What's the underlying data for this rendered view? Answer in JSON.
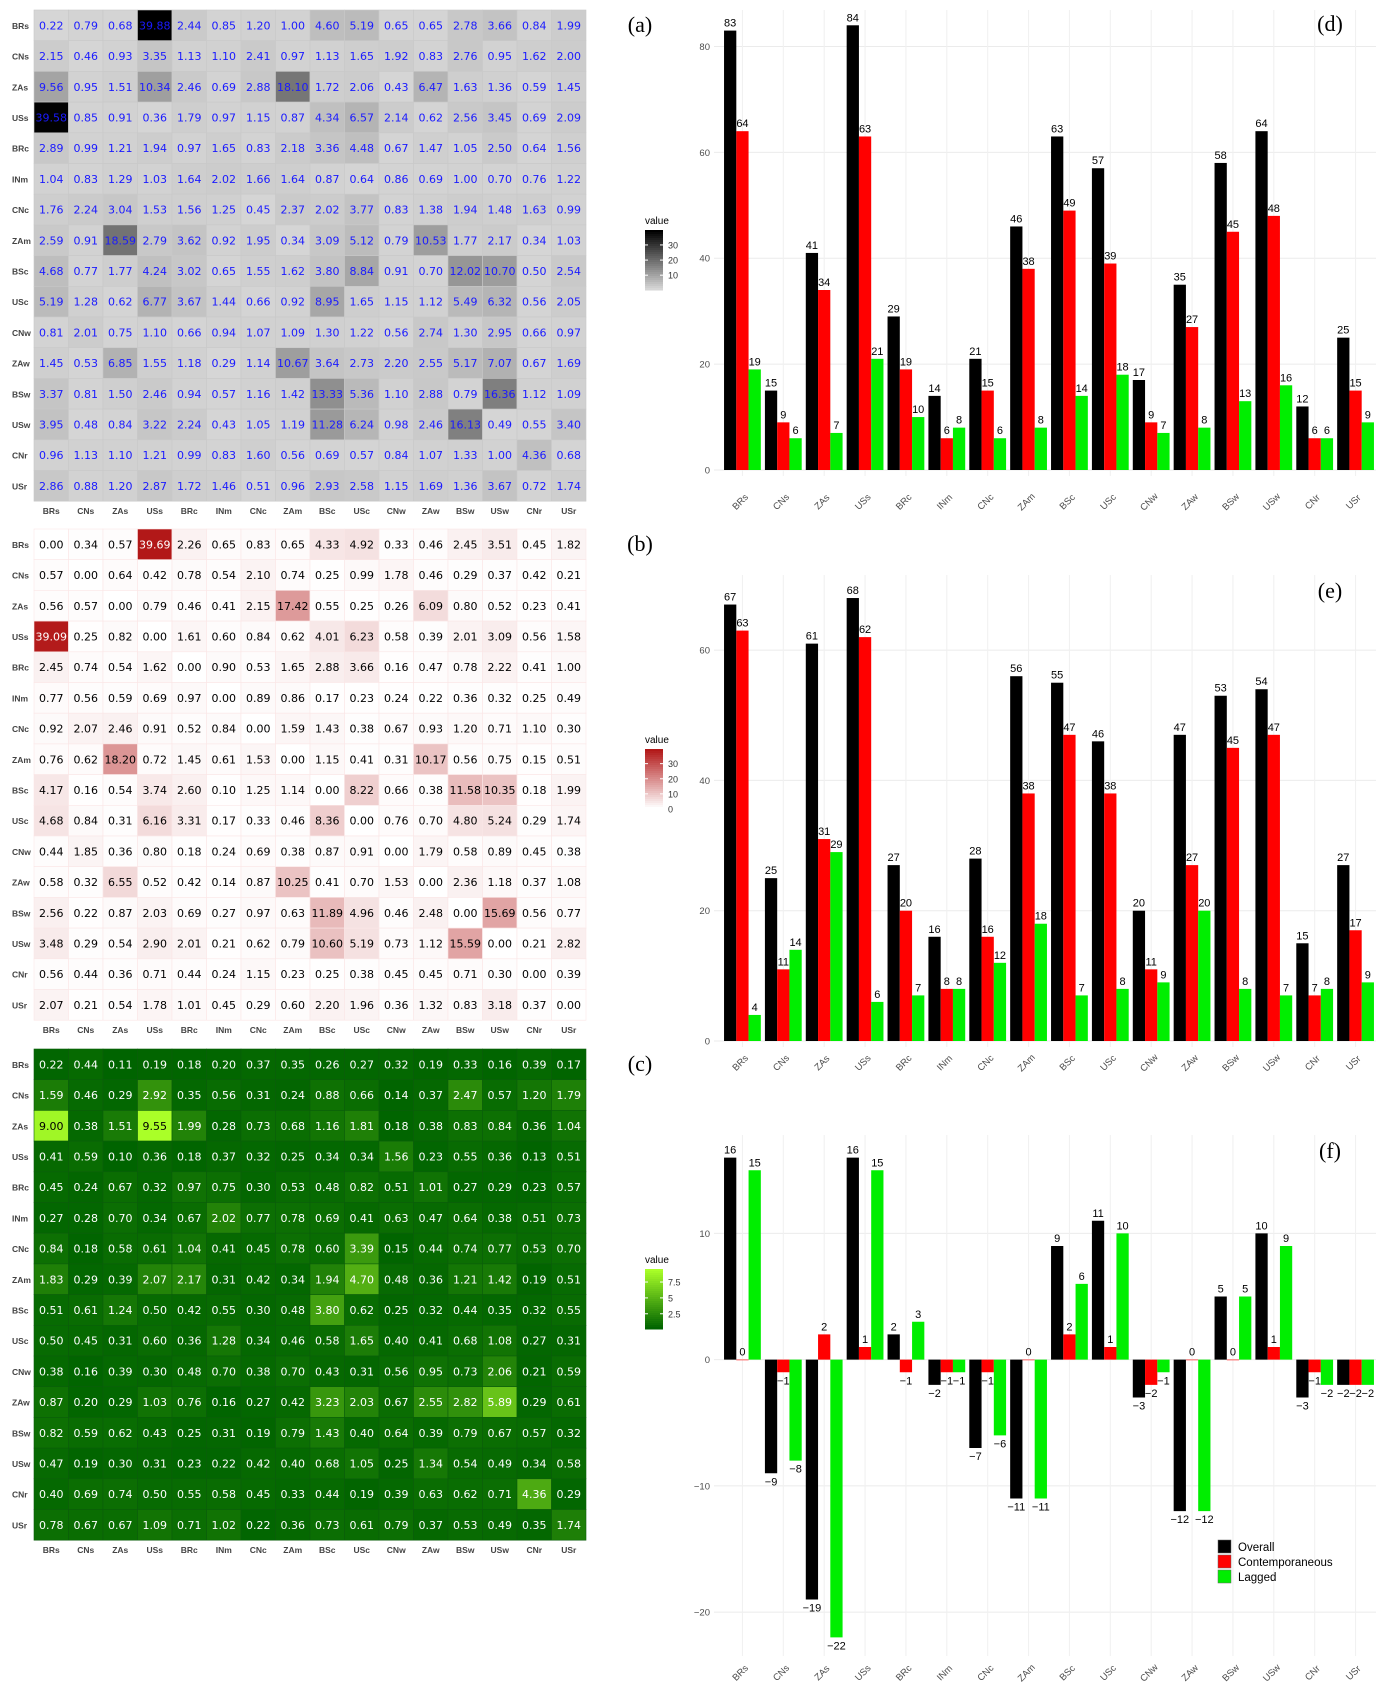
{
  "labels": [
    "BRs",
    "CNs",
    "ZAs",
    "USs",
    "BRc",
    "INm",
    "CNc",
    "ZAm",
    "BSc",
    "USc",
    "CNw",
    "ZAw",
    "BSw",
    "USw",
    "CNr",
    "USr"
  ],
  "panel_letters": [
    "(a)",
    "(b)",
    "(c)",
    "(d)",
    "(e)",
    "(f)"
  ],
  "legend_title": "value",
  "bar_legend": [
    "Overall",
    "Contemporaneous",
    "Lagged"
  ],
  "colors": {
    "overall": "#000000",
    "contemporaneous": "#ff0000",
    "lagged": "#00ee00",
    "heat_a_text": "#1a1aff"
  },
  "chart_data": [
    {
      "type": "heatmap",
      "panel": "(a)",
      "colorscale": "grey",
      "legend_ticks": [
        10,
        20,
        30
      ],
      "range": [
        0.22,
        39.88
      ],
      "values": [
        [
          0.22,
          0.79,
          0.68,
          39.88,
          2.44,
          0.85,
          1.2,
          1.0,
          4.6,
          5.19,
          0.65,
          0.65,
          2.78,
          3.66,
          0.84,
          1.99
        ],
        [
          2.15,
          0.46,
          0.93,
          3.35,
          1.13,
          1.1,
          2.41,
          0.97,
          1.13,
          1.65,
          1.92,
          0.83,
          2.76,
          0.95,
          1.62,
          2.0
        ],
        [
          9.56,
          0.95,
          1.51,
          10.34,
          2.46,
          0.69,
          2.88,
          18.1,
          1.72,
          2.06,
          0.43,
          6.47,
          1.63,
          1.36,
          0.59,
          1.45
        ],
        [
          39.58,
          0.85,
          0.91,
          0.36,
          1.79,
          0.97,
          1.15,
          0.87,
          4.34,
          6.57,
          2.14,
          0.62,
          2.56,
          3.45,
          0.69,
          2.09
        ],
        [
          2.89,
          0.99,
          1.21,
          1.94,
          0.97,
          1.65,
          0.83,
          2.18,
          3.36,
          4.48,
          0.67,
          1.47,
          1.05,
          2.5,
          0.64,
          1.56
        ],
        [
          1.04,
          0.83,
          1.29,
          1.03,
          1.64,
          2.02,
          1.66,
          1.64,
          0.87,
          0.64,
          0.86,
          0.69,
          1.0,
          0.7,
          0.76,
          1.22
        ],
        [
          1.76,
          2.24,
          3.04,
          1.53,
          1.56,
          1.25,
          0.45,
          2.37,
          2.02,
          3.77,
          0.83,
          1.38,
          1.94,
          1.48,
          1.63,
          0.99
        ],
        [
          2.59,
          0.91,
          18.59,
          2.79,
          3.62,
          0.92,
          1.95,
          0.34,
          3.09,
          5.12,
          0.79,
          10.53,
          1.77,
          2.17,
          0.34,
          1.03
        ],
        [
          4.68,
          0.77,
          1.77,
          4.24,
          3.02,
          0.65,
          1.55,
          1.62,
          3.8,
          8.84,
          0.91,
          0.7,
          12.02,
          10.7,
          0.5,
          2.54
        ],
        [
          5.19,
          1.28,
          0.62,
          6.77,
          3.67,
          1.44,
          0.66,
          0.92,
          8.95,
          1.65,
          1.15,
          1.12,
          5.49,
          6.32,
          0.56,
          2.05
        ],
        [
          0.81,
          2.01,
          0.75,
          1.1,
          0.66,
          0.94,
          1.07,
          1.09,
          1.3,
          1.22,
          0.56,
          2.74,
          1.3,
          2.95,
          0.66,
          0.97
        ],
        [
          1.45,
          0.53,
          6.85,
          1.55,
          1.18,
          0.29,
          1.14,
          10.67,
          3.64,
          2.73,
          2.2,
          2.55,
          5.17,
          7.07,
          0.67,
          1.69
        ],
        [
          3.37,
          0.81,
          1.5,
          2.46,
          0.94,
          0.57,
          1.16,
          1.42,
          13.33,
          5.36,
          1.1,
          2.88,
          0.79,
          16.36,
          1.12,
          1.09
        ],
        [
          3.95,
          0.48,
          0.84,
          3.22,
          2.24,
          0.43,
          1.05,
          1.19,
          11.28,
          6.24,
          0.98,
          2.46,
          16.13,
          0.49,
          0.55,
          3.4
        ],
        [
          0.96,
          1.13,
          1.1,
          1.21,
          0.99,
          0.83,
          1.6,
          0.56,
          0.69,
          0.57,
          0.84,
          1.07,
          1.33,
          1.0,
          4.36,
          0.68
        ],
        [
          2.86,
          0.88,
          1.2,
          2.87,
          1.72,
          1.46,
          0.51,
          0.96,
          2.93,
          2.58,
          1.15,
          1.69,
          1.36,
          3.67,
          0.72,
          1.74
        ]
      ]
    },
    {
      "type": "heatmap",
      "panel": "(b)",
      "colorscale": "red",
      "legend_ticks": [
        0,
        10,
        20,
        30
      ],
      "range": [
        0,
        39.69
      ],
      "values": [
        [
          0.0,
          0.34,
          0.57,
          39.69,
          2.26,
          0.65,
          0.83,
          0.65,
          4.33,
          4.92,
          0.33,
          0.46,
          2.45,
          3.51,
          0.45,
          1.82
        ],
        [
          0.57,
          0.0,
          0.64,
          0.42,
          0.78,
          0.54,
          2.1,
          0.74,
          0.25,
          0.99,
          1.78,
          0.46,
          0.29,
          0.37,
          0.42,
          0.21
        ],
        [
          0.56,
          0.57,
          0.0,
          0.79,
          0.46,
          0.41,
          2.15,
          17.42,
          0.55,
          0.25,
          0.26,
          6.09,
          0.8,
          0.52,
          0.23,
          0.41
        ],
        [
          39.09,
          0.25,
          0.82,
          0.0,
          1.61,
          0.6,
          0.84,
          0.62,
          4.01,
          6.23,
          0.58,
          0.39,
          2.01,
          3.09,
          0.56,
          1.58
        ],
        [
          2.45,
          0.74,
          0.54,
          1.62,
          0.0,
          0.9,
          0.53,
          1.65,
          2.88,
          3.66,
          0.16,
          0.47,
          0.78,
          2.22,
          0.41,
          1.0
        ],
        [
          0.77,
          0.56,
          0.59,
          0.69,
          0.97,
          0.0,
          0.89,
          0.86,
          0.17,
          0.23,
          0.24,
          0.22,
          0.36,
          0.32,
          0.25,
          0.49
        ],
        [
          0.92,
          2.07,
          2.46,
          0.91,
          0.52,
          0.84,
          0.0,
          1.59,
          1.43,
          0.38,
          0.67,
          0.93,
          1.2,
          0.71,
          1.1,
          0.3
        ],
        [
          0.76,
          0.62,
          18.2,
          0.72,
          1.45,
          0.61,
          1.53,
          0.0,
          1.15,
          0.41,
          0.31,
          10.17,
          0.56,
          0.75,
          0.15,
          0.51
        ],
        [
          4.17,
          0.16,
          0.54,
          3.74,
          2.6,
          0.1,
          1.25,
          1.14,
          0.0,
          8.22,
          0.66,
          0.38,
          11.58,
          10.35,
          0.18,
          1.99
        ],
        [
          4.68,
          0.84,
          0.31,
          6.16,
          3.31,
          0.17,
          0.33,
          0.46,
          8.36,
          0.0,
          0.76,
          0.7,
          4.8,
          5.24,
          0.29,
          1.74
        ],
        [
          0.44,
          1.85,
          0.36,
          0.8,
          0.18,
          0.24,
          0.69,
          0.38,
          0.87,
          0.91,
          0.0,
          1.79,
          0.58,
          0.89,
          0.45,
          0.38
        ],
        [
          0.58,
          0.32,
          6.55,
          0.52,
          0.42,
          0.14,
          0.87,
          10.25,
          0.41,
          0.7,
          1.53,
          0.0,
          2.36,
          1.18,
          0.37,
          1.08
        ],
        [
          2.56,
          0.22,
          0.87,
          2.03,
          0.69,
          0.27,
          0.97,
          0.63,
          11.89,
          4.96,
          0.46,
          2.48,
          0.0,
          15.69,
          0.56,
          0.77
        ],
        [
          3.48,
          0.29,
          0.54,
          2.9,
          2.01,
          0.21,
          0.62,
          0.79,
          10.6,
          5.19,
          0.73,
          1.12,
          15.59,
          0.0,
          0.21,
          2.82
        ],
        [
          0.56,
          0.44,
          0.36,
          0.71,
          0.44,
          0.24,
          1.15,
          0.23,
          0.25,
          0.38,
          0.45,
          0.45,
          0.71,
          0.3,
          0.0,
          0.39
        ],
        [
          2.07,
          0.21,
          0.54,
          1.78,
          1.01,
          0.45,
          0.29,
          0.6,
          2.2,
          1.96,
          0.36,
          1.32,
          0.83,
          3.18,
          0.37,
          0.0
        ]
      ]
    },
    {
      "type": "heatmap",
      "panel": "(c)",
      "colorscale": "green",
      "legend_ticks": [
        2.5,
        5.0,
        7.5
      ],
      "range": [
        0.1,
        9.55
      ],
      "values": [
        [
          0.22,
          0.44,
          0.11,
          0.19,
          0.18,
          0.2,
          0.37,
          0.35,
          0.26,
          0.27,
          0.32,
          0.19,
          0.33,
          0.16,
          0.39,
          0.17
        ],
        [
          1.59,
          0.46,
          0.29,
          2.92,
          0.35,
          0.56,
          0.31,
          0.24,
          0.88,
          0.66,
          0.14,
          0.37,
          2.47,
          0.57,
          1.2,
          1.79
        ],
        [
          9.0,
          0.38,
          1.51,
          9.55,
          1.99,
          0.28,
          0.73,
          0.68,
          1.16,
          1.81,
          0.18,
          0.38,
          0.83,
          0.84,
          0.36,
          1.04
        ],
        [
          0.41,
          0.59,
          0.1,
          0.36,
          0.18,
          0.37,
          0.32,
          0.25,
          0.34,
          0.34,
          1.56,
          0.23,
          0.55,
          0.36,
          0.13,
          0.51
        ],
        [
          0.45,
          0.24,
          0.67,
          0.32,
          0.97,
          0.75,
          0.3,
          0.53,
          0.48,
          0.82,
          0.51,
          1.01,
          0.27,
          0.29,
          0.23,
          0.57
        ],
        [
          0.27,
          0.28,
          0.7,
          0.34,
          0.67,
          2.02,
          0.77,
          0.78,
          0.69,
          0.41,
          0.63,
          0.47,
          0.64,
          0.38,
          0.51,
          0.73
        ],
        [
          0.84,
          0.18,
          0.58,
          0.61,
          1.04,
          0.41,
          0.45,
          0.78,
          0.6,
          3.39,
          0.15,
          0.44,
          0.74,
          0.77,
          0.53,
          0.7
        ],
        [
          1.83,
          0.29,
          0.39,
          2.07,
          2.17,
          0.31,
          0.42,
          0.34,
          1.94,
          4.7,
          0.48,
          0.36,
          1.21,
          1.42,
          0.19,
          0.51
        ],
        [
          0.51,
          0.61,
          1.24,
          0.5,
          0.42,
          0.55,
          0.3,
          0.48,
          3.8,
          0.62,
          0.25,
          0.32,
          0.44,
          0.35,
          0.32,
          0.55
        ],
        [
          0.5,
          0.45,
          0.31,
          0.6,
          0.36,
          1.28,
          0.34,
          0.46,
          0.58,
          1.65,
          0.4,
          0.41,
          0.68,
          1.08,
          0.27,
          0.31
        ],
        [
          0.38,
          0.16,
          0.39,
          0.3,
          0.48,
          0.7,
          0.38,
          0.7,
          0.43,
          0.31,
          0.56,
          0.95,
          0.73,
          2.06,
          0.21,
          0.59
        ],
        [
          0.87,
          0.2,
          0.29,
          1.03,
          0.76,
          0.16,
          0.27,
          0.42,
          3.23,
          2.03,
          0.67,
          2.55,
          2.82,
          5.89,
          0.29,
          0.61
        ],
        [
          0.82,
          0.59,
          0.62,
          0.43,
          0.25,
          0.31,
          0.19,
          0.79,
          1.43,
          0.4,
          0.64,
          0.39,
          0.79,
          0.67,
          0.57,
          0.32
        ],
        [
          0.47,
          0.19,
          0.3,
          0.31,
          0.23,
          0.22,
          0.42,
          0.4,
          0.68,
          1.05,
          0.25,
          1.34,
          0.54,
          0.49,
          0.34,
          0.58
        ],
        [
          0.4,
          0.69,
          0.74,
          0.5,
          0.55,
          0.58,
          0.45,
          0.33,
          0.44,
          0.19,
          0.39,
          0.63,
          0.62,
          0.71,
          4.36,
          0.29
        ],
        [
          0.78,
          0.67,
          0.67,
          1.09,
          0.71,
          1.02,
          0.22,
          0.36,
          0.73,
          0.61,
          0.79,
          0.37,
          0.53,
          0.49,
          0.35,
          1.74
        ]
      ]
    },
    {
      "type": "bar",
      "panel": "(d)",
      "ylim": [
        0,
        85
      ],
      "y_ticks": [
        0,
        20,
        40,
        60,
        80
      ],
      "series": [
        {
          "name": "Overall",
          "values": [
            83,
            15,
            41,
            84,
            29,
            14,
            21,
            46,
            63,
            57,
            17,
            35,
            58,
            64,
            12,
            25
          ]
        },
        {
          "name": "Contemporaneous",
          "values": [
            64,
            9,
            34,
            63,
            19,
            6,
            15,
            38,
            49,
            39,
            9,
            27,
            45,
            48,
            6,
            15
          ]
        },
        {
          "name": "Lagged",
          "values": [
            19,
            6,
            7,
            21,
            10,
            8,
            6,
            8,
            14,
            18,
            7,
            8,
            13,
            16,
            6,
            9
          ]
        }
      ]
    },
    {
      "type": "bar",
      "panel": "(e)",
      "ylim": [
        0,
        70
      ],
      "y_ticks": [
        0,
        20,
        40,
        60
      ],
      "series": [
        {
          "name": "Overall",
          "values": [
            67,
            25,
            61,
            68,
            27,
            16,
            28,
            56,
            55,
            46,
            20,
            47,
            53,
            54,
            15,
            27
          ]
        },
        {
          "name": "Contemporaneous",
          "values": [
            63,
            11,
            31,
            62,
            20,
            8,
            16,
            38,
            47,
            38,
            11,
            27,
            45,
            47,
            7,
            17
          ]
        },
        {
          "name": "Lagged",
          "values": [
            4,
            14,
            29,
            6,
            7,
            8,
            12,
            18,
            7,
            8,
            9,
            20,
            8,
            7,
            8,
            9
          ]
        }
      ]
    },
    {
      "type": "bar",
      "panel": "(f)",
      "ylim": [
        -23,
        17
      ],
      "y_ticks": [
        -20,
        -10,
        0,
        10
      ],
      "series": [
        {
          "name": "Overall",
          "values": [
            16,
            -9,
            -19,
            16,
            2,
            -2,
            -7,
            -11,
            9,
            11,
            -3,
            -12,
            5,
            10,
            -3,
            -2
          ]
        },
        {
          "name": "Contemporaneous",
          "values": [
            0,
            -1,
            2,
            1,
            -1,
            -1,
            -1,
            0,
            2,
            1,
            -2,
            0,
            0,
            1,
            -1,
            -2
          ]
        },
        {
          "name": "Lagged",
          "values": [
            15,
            -8,
            -22,
            15,
            3,
            -1,
            -6,
            -11,
            6,
            10,
            -1,
            -12,
            5,
            9,
            -2,
            -2
          ]
        }
      ]
    }
  ]
}
